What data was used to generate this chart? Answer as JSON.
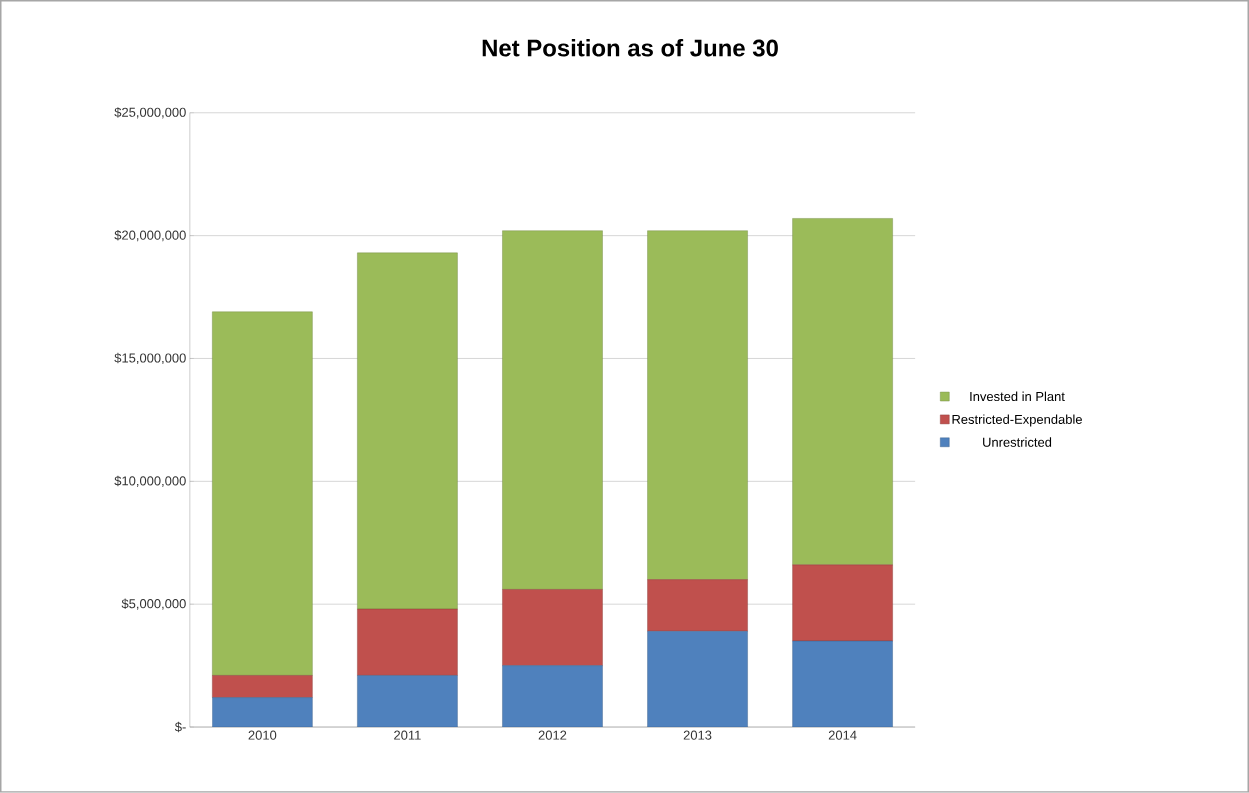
{
  "chart_data": {
    "type": "bar",
    "stacked": true,
    "title": "Net Position as of June 30",
    "categories": [
      "2010",
      "2011",
      "2012",
      "2013",
      "2014"
    ],
    "series": [
      {
        "name": "Unrestricted",
        "color": "#4f81bd",
        "values": [
          1200000,
          2100000,
          2500000,
          3900000,
          3500000
        ]
      },
      {
        "name": "Restricted-Expendable",
        "color": "#c0504d",
        "values": [
          900000,
          2700000,
          3100000,
          2100000,
          3100000
        ]
      },
      {
        "name": "Invested in Plant",
        "color": "#9bbb59",
        "values": [
          14800000,
          14500000,
          14600000,
          14200000,
          14100000
        ]
      }
    ],
    "ylim": [
      0,
      25000000
    ],
    "yticks": [
      {
        "value": 0,
        "label": "$-"
      },
      {
        "value": 5000000,
        "label": "$5,000,000"
      },
      {
        "value": 10000000,
        "label": "$10,000,000"
      },
      {
        "value": 15000000,
        "label": "$15,000,000"
      },
      {
        "value": 20000000,
        "label": "$20,000,000"
      },
      {
        "value": 25000000,
        "label": "$25,000,000"
      }
    ],
    "grid": "y",
    "legend": "right"
  }
}
